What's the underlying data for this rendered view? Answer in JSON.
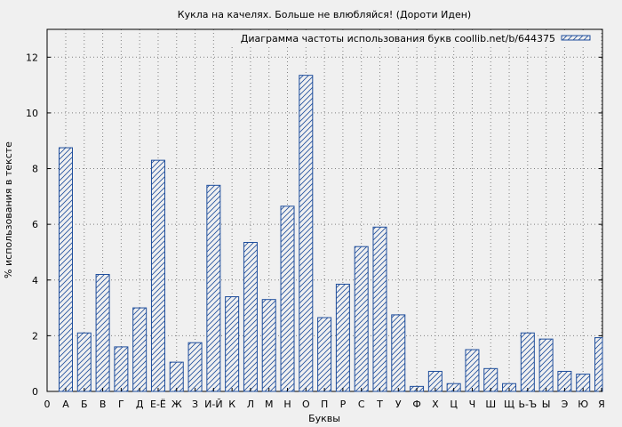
{
  "chart_data": {
    "type": "bar",
    "title": "Кукла на качелях. Больше не влюбляйся! (Дороти Иден)",
    "xlabel": "Буквы",
    "ylabel": "% использования в тексте",
    "origin_label": "0",
    "categories": [
      "А",
      "Б",
      "В",
      "Г",
      "Д",
      "Е-Ё",
      "Ж",
      "З",
      "И-Й",
      "К",
      "Л",
      "М",
      "Н",
      "О",
      "П",
      "Р",
      "С",
      "Т",
      "У",
      "Ф",
      "Х",
      "Ц",
      "Ч",
      "Ш",
      "Щ",
      "Ь-Ъ",
      "Ы",
      "Э",
      "Ю",
      "Я"
    ],
    "series": [
      {
        "name": "Диаграмма частоты использования букв coollib.net/b/644375",
        "values": [
          8.75,
          2.1,
          4.2,
          1.6,
          3.0,
          8.3,
          1.05,
          1.75,
          7.4,
          3.4,
          5.35,
          3.3,
          6.65,
          11.35,
          2.65,
          3.85,
          5.2,
          5.9,
          2.75,
          0.18,
          0.72,
          0.28,
          1.5,
          0.82,
          0.28,
          2.1,
          1.88,
          0.72,
          0.62,
          1.93
        ]
      }
    ],
    "yticks": [
      0,
      2,
      4,
      6,
      8,
      10,
      12
    ],
    "ylim": [
      0,
      13
    ],
    "grid": true,
    "legend_position": "top-right",
    "colors": {
      "bar_stroke": "#1f4e9c",
      "background": "#f0f0f0"
    }
  }
}
